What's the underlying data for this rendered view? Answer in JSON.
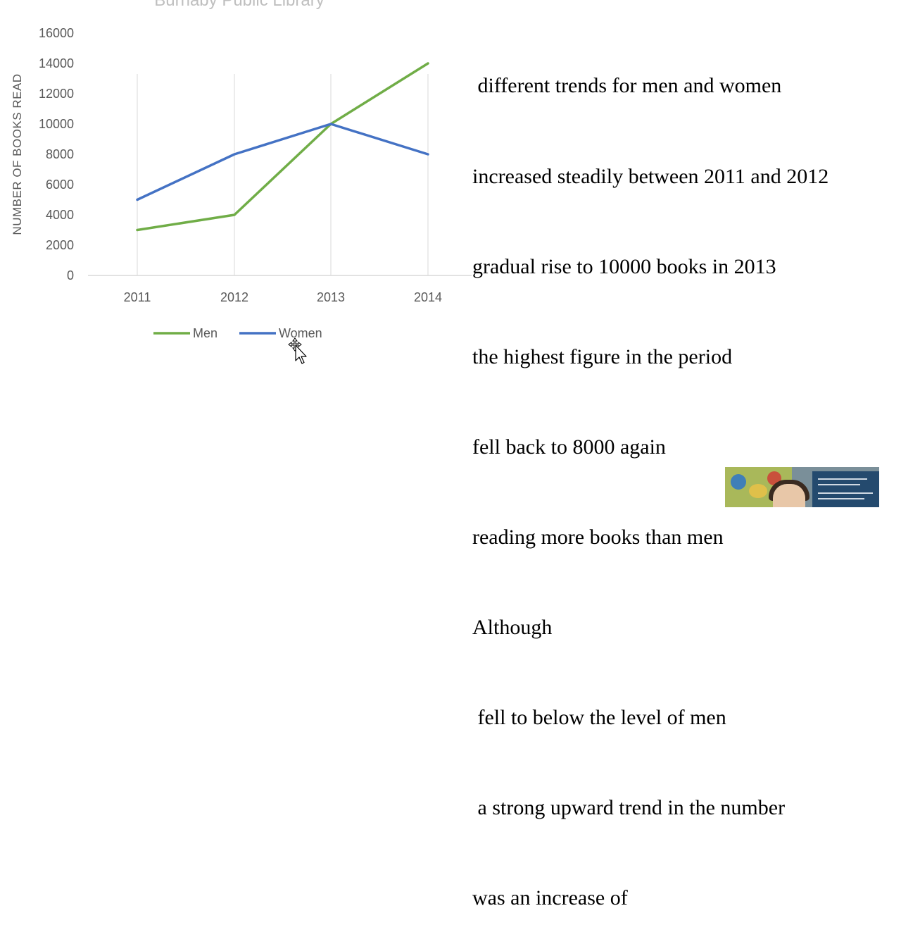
{
  "chart_data": {
    "type": "line",
    "title": "Burnaby Public Library",
    "xlabel": "",
    "ylabel": "NUMBER OF BOOKS READ",
    "categories": [
      "2011",
      "2012",
      "2013",
      "2014"
    ],
    "series": [
      {
        "name": "Men",
        "values": [
          3000,
          4000,
          10000,
          14000
        ],
        "color": "#70ad47"
      },
      {
        "name": "Women",
        "values": [
          5000,
          8000,
          10000,
          8000
        ],
        "color": "#4472c4"
      }
    ],
    "ylim": [
      0,
      16000
    ],
    "yticks": [
      "16000",
      "14000",
      "12000",
      "10000",
      "8000",
      "6000",
      "4000",
      "2000",
      "0"
    ],
    "grid": "vertical lines at categories",
    "legend": "bottom"
  },
  "notes": {
    "lines": [
      " different trends for men and women",
      "increased steadily between 2011 and 2012",
      "gradual rise to 10000 books in 2013",
      "the highest figure in the period",
      "fell back to 8000 again",
      "reading more books than men",
      "Although",
      " fell to below the level of men",
      " a strong upward trend in the number",
      "was an increase of"
    ]
  },
  "icons": {
    "cursor": "move-cursor-icon",
    "webcam": "webcam-presenter-thumbnail"
  }
}
